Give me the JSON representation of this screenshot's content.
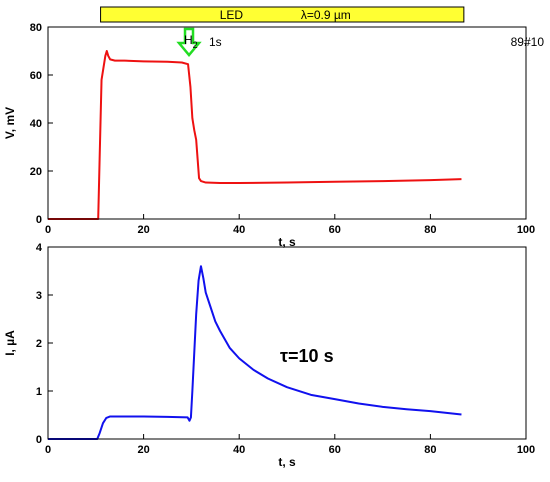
{
  "led_bar": {
    "label": "LED",
    "wavelength": "λ=0.9 µm",
    "fill": "#ffff33",
    "x_range": [
      11,
      87
    ]
  },
  "gas_marker": {
    "gas": "H",
    "subscript": "2",
    "duration": "1s",
    "arrow_color": "#22dd22",
    "arrow_x": 29.5
  },
  "sample_id": "89#10",
  "tau_text": "τ=10 s",
  "chart_data": [
    {
      "type": "line",
      "xlabel": "t, s",
      "ylabel": "V, mV",
      "xlim": [
        0,
        100
      ],
      "ylim": [
        0,
        80
      ],
      "xticks": [
        0,
        20,
        40,
        60,
        80,
        100
      ],
      "yticks": [
        0,
        20,
        40,
        60,
        80
      ],
      "series": [
        {
          "color": "#ee1111",
          "x": [
            0,
            5,
            10.5,
            10.8,
            11.2,
            11.6,
            12.0,
            12.3,
            12.6,
            13.0,
            14,
            16,
            20,
            25,
            28,
            29.3,
            29.8,
            30.2,
            30.6,
            31.0,
            31.3,
            31.6,
            32.0,
            33,
            36,
            40,
            50,
            60,
            70,
            80,
            86.5
          ],
          "y": [
            0,
            0,
            0,
            25,
            58,
            63,
            68,
            70,
            68,
            66.5,
            66,
            66,
            65.7,
            65.5,
            65.2,
            64.5,
            55,
            42,
            37,
            33,
            25,
            17,
            15.8,
            15.2,
            15.0,
            15.0,
            15.2,
            15.5,
            15.8,
            16.2,
            16.6
          ]
        }
      ]
    },
    {
      "type": "line",
      "xlabel": "t, s",
      "ylabel": "I, µA",
      "xlim": [
        0,
        100
      ],
      "ylim": [
        0,
        4
      ],
      "xticks": [
        0,
        20,
        40,
        60,
        80,
        100
      ],
      "yticks": [
        0,
        1,
        2,
        3,
        4
      ],
      "series": [
        {
          "color": "#1111ee",
          "x": [
            0,
            5,
            10.3,
            10.8,
            11.5,
            12.2,
            13,
            15,
            20,
            25,
            29.2,
            29.6,
            29.9,
            30.2,
            30.6,
            31.0,
            31.5,
            32.0,
            32.5,
            33.0,
            34,
            35,
            36,
            38,
            40,
            43,
            46,
            50,
            55,
            60,
            65,
            70,
            75,
            80,
            86.5
          ],
          "y": [
            0,
            0,
            0,
            0.12,
            0.33,
            0.44,
            0.47,
            0.47,
            0.47,
            0.46,
            0.45,
            0.38,
            0.45,
            1.0,
            1.8,
            2.6,
            3.3,
            3.6,
            3.35,
            3.05,
            2.75,
            2.45,
            2.25,
            1.9,
            1.68,
            1.44,
            1.26,
            1.08,
            0.92,
            0.83,
            0.74,
            0.67,
            0.62,
            0.58,
            0.51
          ]
        }
      ]
    }
  ]
}
